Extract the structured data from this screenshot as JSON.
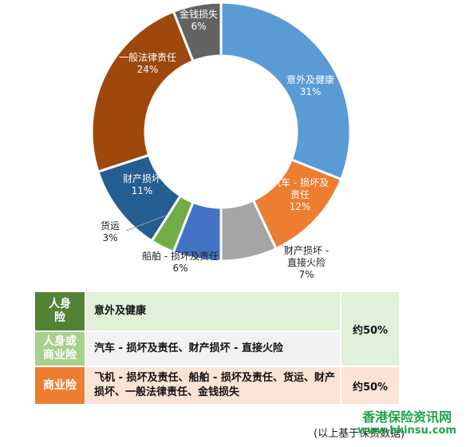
{
  "chart_data": {
    "type": "pie",
    "donut": true,
    "slices": [
      {
        "label": "意外及健康",
        "value": 31,
        "text": "31%",
        "color": "#5b9bd5",
        "label_color": "#ffffff"
      },
      {
        "label": "汽车 - 损坏及责任",
        "value": 12,
        "text": "12%",
        "color": "#ed7d31",
        "label_color": "#ffffff"
      },
      {
        "label": "财产损坏 - 直接火险",
        "value": 7,
        "text": "7%",
        "color": "#a5a5a5",
        "label_color": "#222222"
      },
      {
        "label": "船舶 - 损坏及责任",
        "value": 6,
        "text": "6%",
        "color": "#4472c4",
        "label_color": "#222222"
      },
      {
        "label": "货运",
        "value": 3,
        "text": "3%",
        "color": "#70ad47",
        "label_color": "#222222"
      },
      {
        "label": "财产损坏",
        "value": 11,
        "text": "11%",
        "color": "#255e91",
        "label_color": "#ffffff"
      },
      {
        "label": "一般法律责任",
        "value": 24,
        "text": "24%",
        "color": "#9e480e",
        "label_color": "#ffffff"
      },
      {
        "label": "金钱损失",
        "value": 6,
        "text": "6%",
        "color": "#636363",
        "label_color": "#ffffff"
      }
    ]
  },
  "table": {
    "rows": [
      {
        "category": "人身险",
        "color": "#548235",
        "desc": "意外及健康"
      },
      {
        "category": "人身或商业险",
        "color": "#a9d18e",
        "desc": "汽车 - 损坏及责任、财产损坏 - 直接火险"
      },
      {
        "category": "商业险",
        "color": "#ed7d31",
        "desc": "飞机 - 损坏及责任、船舶 - 损坏及责任、货运、财产损坏、一般法律责任、金钱损失"
      }
    ],
    "pct_life": "约50%",
    "pct_commercial": "约50%"
  },
  "footnote": "(以上基于保费数据)",
  "watermark": {
    "line1": "香港保险资讯网",
    "line2": "www.hkinsu.com"
  }
}
